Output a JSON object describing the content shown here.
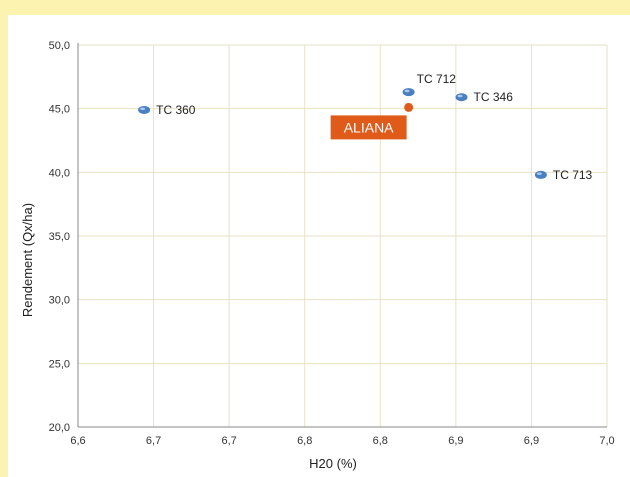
{
  "chart_data": {
    "type": "scatter",
    "xlabel": "H20 (%)",
    "ylabel": "Rendement (Qx/ha)",
    "xlim": [
      6.6,
      7.0
    ],
    "ylim": [
      20.0,
      50.0
    ],
    "x_ticks": [
      "6,6",
      "6,7",
      "6,7",
      "6,8",
      "6,8",
      "6,9",
      "6,9",
      "7,0"
    ],
    "y_ticks": [
      "20,0",
      "25,0",
      "30,0",
      "35,0",
      "40,0",
      "45,0",
      "50,0"
    ],
    "grid": true,
    "series": [
      {
        "name": "",
        "color": "#4a7fc1",
        "points": [
          {
            "label": "TC 360",
            "x": 6.65,
            "y": 44.9
          },
          {
            "label": "TC 712",
            "x": 6.85,
            "y": 46.3
          },
          {
            "label": "TC 346",
            "x": 6.89,
            "y": 45.9
          },
          {
            "label": "TC 713",
            "x": 6.95,
            "y": 39.8
          }
        ]
      },
      {
        "name": "",
        "color": "#e05a1a",
        "points": [
          {
            "label": "ALIANA",
            "x": 6.85,
            "y": 45.1,
            "highlight": true
          }
        ]
      }
    ]
  }
}
